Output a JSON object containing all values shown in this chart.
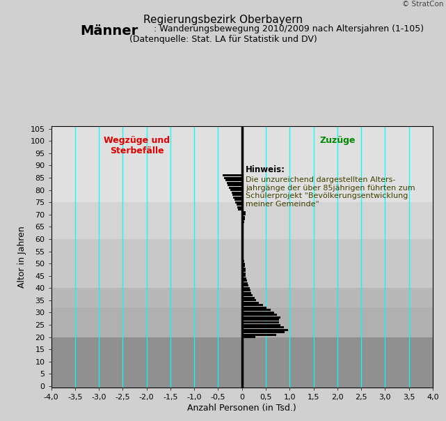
{
  "title_main": "Regierungsbezirk Oberbayern",
  "title_bold": "Männer",
  "title_sub1": ": Wanderungsbewegung 2010/2009 nach Altersjahren (1-105)",
  "title_sub2": "(Datenquelle: Stat. LA für Statistik und DV)",
  "xlabel": "Anzahl Personen (in Tsd.)",
  "ylabel": "Altor in Jahren",
  "xlim": [
    -4.0,
    4.0
  ],
  "ylim": [
    -0.5,
    106
  ],
  "xticks": [
    -4.0,
    -3.5,
    -3.0,
    -2.5,
    -2.0,
    -1.5,
    -1.0,
    -0.5,
    0.0,
    0.5,
    1.0,
    1.5,
    2.0,
    2.5,
    3.0,
    3.5,
    4.0
  ],
  "yticks": [
    0,
    5,
    10,
    15,
    20,
    25,
    30,
    35,
    40,
    45,
    50,
    55,
    60,
    65,
    70,
    75,
    80,
    85,
    90,
    95,
    100,
    105
  ],
  "xtick_labels": [
    "-4,0",
    "-3,5",
    "-3,0",
    "-2,5",
    "-2,0",
    "-1,5",
    "-1,0",
    "-0,5",
    "0",
    "0,5",
    "1,0",
    "1,5",
    "2,0",
    "2,5",
    "3,0",
    "3,5",
    "4,0"
  ],
  "bg_color": "#d0d0d0",
  "plot_bg_bands": [
    {
      "ymin": -0.5,
      "ymax": 20,
      "color": "#909090"
    },
    {
      "ymin": 20,
      "ymax": 32,
      "color": "#b0b0b0"
    },
    {
      "ymin": 32,
      "ymax": 40,
      "color": "#b8b8b8"
    },
    {
      "ymin": 40,
      "ymax": 60,
      "color": "#c8c8c8"
    },
    {
      "ymin": 60,
      "ymax": 75,
      "color": "#d4d4d4"
    },
    {
      "ymin": 75,
      "ymax": 106,
      "color": "#e0e0e0"
    }
  ],
  "cyan_lines_x": [
    -3.5,
    -3.0,
    -2.5,
    -2.0,
    -1.5,
    -1.0,
    -0.5,
    0.5,
    1.0,
    1.5,
    2.0,
    2.5,
    3.0,
    3.5
  ],
  "wegzuge_label": "Wegzüge und\nSterbefälle",
  "wegzuge_color": "#dd0000",
  "wegzuge_x": -2.2,
  "wegzuge_y": 102,
  "zuzuge_label": "Zuzüge",
  "zuzuge_color": "#008800",
  "zuzuge_x": 2.0,
  "zuzuge_y": 102,
  "hinweis_title": "Hinweis:",
  "hinweis_text": "Die unzureichend dargestellten Alters-\njahrgänge der über 85jährigen führten zum\nSchülerprojekt \"Bevölkerungsentwicklung\nmeiner Gemeinde\"",
  "hinweis_x": 0.08,
  "hinweis_y": 90,
  "bar_color": "#000000",
  "copyright": "© StratCon",
  "values": [
    0.02,
    0.03,
    0.03,
    0.03,
    0.03,
    0.03,
    0.03,
    0.03,
    0.03,
    0.03,
    0.03,
    0.03,
    0.03,
    0.03,
    0.04,
    0.04,
    0.04,
    0.04,
    0.04,
    0.28,
    0.72,
    0.9,
    0.96,
    0.88,
    0.8,
    0.78,
    0.78,
    0.8,
    0.74,
    0.68,
    0.6,
    0.52,
    0.44,
    0.36,
    0.3,
    0.26,
    0.23,
    0.2,
    0.18,
    0.16,
    0.14,
    0.12,
    0.1,
    0.09,
    0.08,
    0.08,
    0.07,
    0.07,
    0.06,
    0.06,
    0.05,
    0.04,
    0.04,
    0.04,
    0.03,
    0.03,
    0.03,
    0.03,
    0.03,
    0.04,
    0.04,
    0.04,
    0.04,
    0.04,
    0.04,
    0.04,
    0.05,
    0.06,
    0.06,
    0.07,
    0.07,
    -0.08,
    -0.1,
    -0.12,
    -0.14,
    -0.16,
    -0.18,
    -0.2,
    -0.22,
    -0.25,
    -0.27,
    -0.3,
    -0.32,
    -0.35,
    -0.38,
    -0.4,
    0.0,
    0.0,
    0.0,
    0.0,
    0.0,
    0.0,
    0.0,
    0.0,
    0.0,
    0.0,
    0.0,
    0.0,
    0.0,
    0.0,
    0.0,
    0.0,
    0.0,
    0.0,
    0.0
  ]
}
